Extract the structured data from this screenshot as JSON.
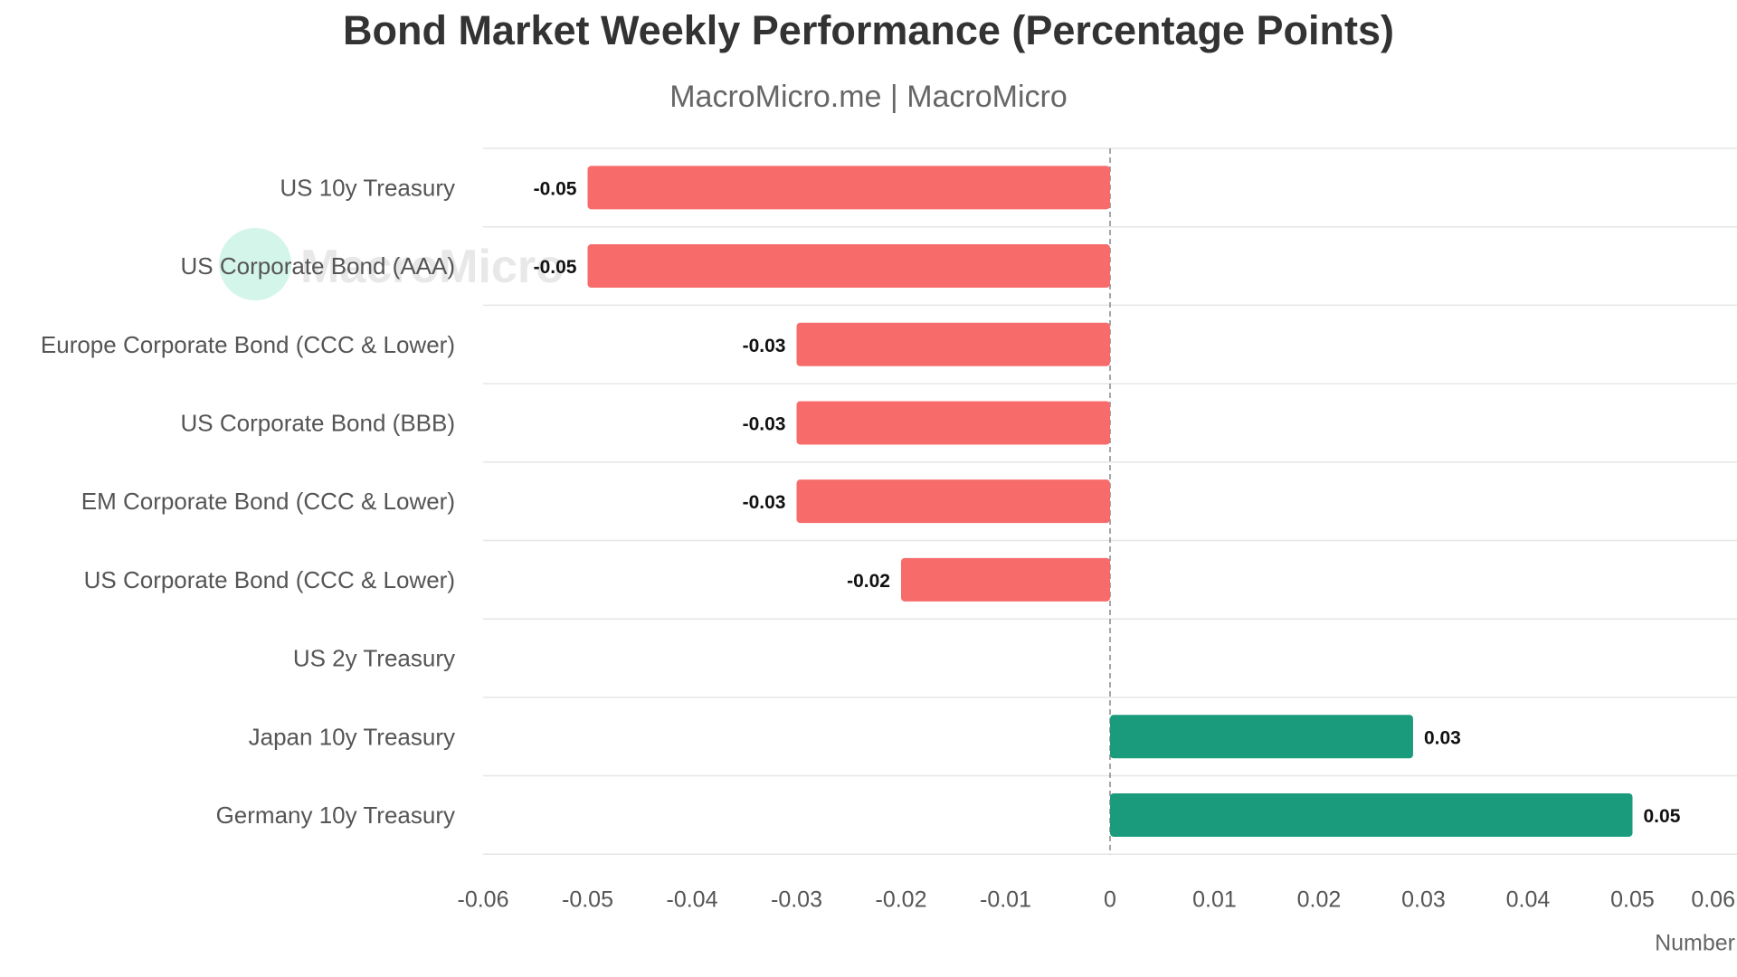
{
  "header": {
    "title": "Bond Market Weekly Performance (Percentage Points)",
    "subtitle": "MacroMicro.me | MacroMicro"
  },
  "watermark": "MacroMicro",
  "colors": {
    "negative": "#f76b6b",
    "positive": "#1a9c7c",
    "grid": "#e6e6e6",
    "zero_line": "#888888"
  },
  "chart_data": {
    "type": "bar",
    "orientation": "horizontal",
    "title": "Bond Market Weekly Performance (Percentage Points)",
    "subtitle": "MacroMicro.me | MacroMicro",
    "xlabel": "Number",
    "xlim": [
      -0.06,
      0.06
    ],
    "x_ticks": [
      "-0.06",
      "-0.05",
      "-0.04",
      "-0.03",
      "-0.02",
      "-0.01",
      "0",
      "0.01",
      "0.02",
      "0.03",
      "0.04",
      "0.05",
      "0.06"
    ],
    "categories": [
      "US 10y Treasury",
      "US Corporate Bond (AAA)",
      "Europe Corporate Bond (CCC & Lower)",
      "US Corporate Bond (BBB)",
      "EM Corporate Bond (CCC & Lower)",
      "US Corporate Bond (CCC & Lower)",
      "US 2y Treasury",
      "Japan 10y Treasury",
      "Germany 10y Treasury"
    ],
    "values": [
      -0.05,
      -0.05,
      -0.03,
      -0.03,
      -0.03,
      -0.02,
      0,
      0.029,
      0.05
    ],
    "data_labels": [
      "-0.05",
      "-0.05",
      "-0.03",
      "-0.03",
      "-0.03",
      "-0.02",
      "",
      "0.03",
      "0.05"
    ],
    "grid": true,
    "legend": "none"
  }
}
